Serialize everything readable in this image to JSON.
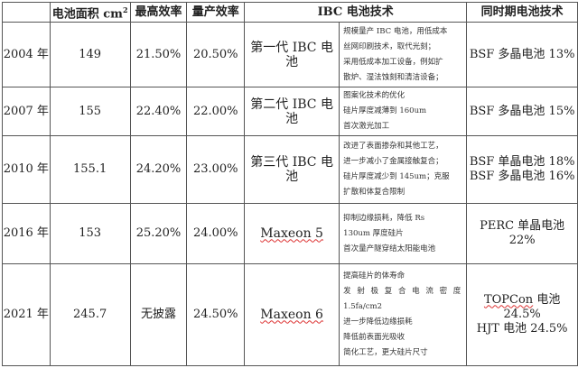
{
  "headers": {
    "year": "",
    "area": "电池面积 cm",
    "area_sup": "2",
    "max_eff": "最高效率",
    "mass_eff": "量产效率",
    "ibc": "IBC 电池技术",
    "contemporary": "同时期电池技术"
  },
  "rows": [
    {
      "year": "2004 年",
      "area": "149",
      "max_eff": "21.50%",
      "mass_eff": "20.50%",
      "generation": "第一代 IBC 电池",
      "details": [
        "规模量产 IBC 电池，用低成本",
        "丝网印刷技术，取代光刻；",
        "采用低成本加工设备，例如扩",
        "散炉、湿法蚀刻和清洁设备；"
      ],
      "contemporary": [
        "BSF 多晶电池 13%"
      ]
    },
    {
      "year": "2007 年",
      "area": "155",
      "max_eff": "22.40%",
      "mass_eff": "22.00%",
      "generation": "第二代 IBC 电池",
      "details": [
        "图案化技术的优化",
        "硅片厚度减薄到 160um",
        "首次激光加工"
      ],
      "contemporary": [
        "BSF 多晶电池 15%"
      ]
    },
    {
      "year": "2010 年",
      "area": "155.1",
      "max_eff": "24.20%",
      "mass_eff": "23.00%",
      "generation": "第三代 IBC 电池",
      "details": [
        "改进了表面掺杂和其他工艺，",
        "进一步减小了金属接触复合；",
        "硅片厚度减少到 145um；克服",
        "扩散和体复合限制"
      ],
      "contemporary": [
        "BSF 单晶电池 18%",
        "BSF 多晶电池 16%"
      ]
    },
    {
      "year": "2016 年",
      "area": "153",
      "max_eff": "25.20%",
      "mass_eff": "24.00%",
      "generation": "Maxeon 5",
      "details": [
        "抑制边缘损耗，降低 Rs",
        "130um 厚度硅片",
        "首次量产隧穿结太阳能电池"
      ],
      "contemporary": [
        "PERC 单晶电池 22%"
      ]
    },
    {
      "year": "2021 年",
      "area": "245.7",
      "max_eff": "无披露",
      "mass_eff": "24.50%",
      "generation": "Maxeon 6",
      "details": [
        "提高硅片的体寿命",
        "发 射 极 复 合 电 流 密 度",
        "1.5fa/cm2",
        "进一步降低边缘损耗",
        "降低前表面光吸收",
        "简化工艺，更大硅片尺寸"
      ],
      "contemporary": [
        "TOPCon 电池 24.5%",
        "HJT 电池 24.5%"
      ]
    }
  ]
}
